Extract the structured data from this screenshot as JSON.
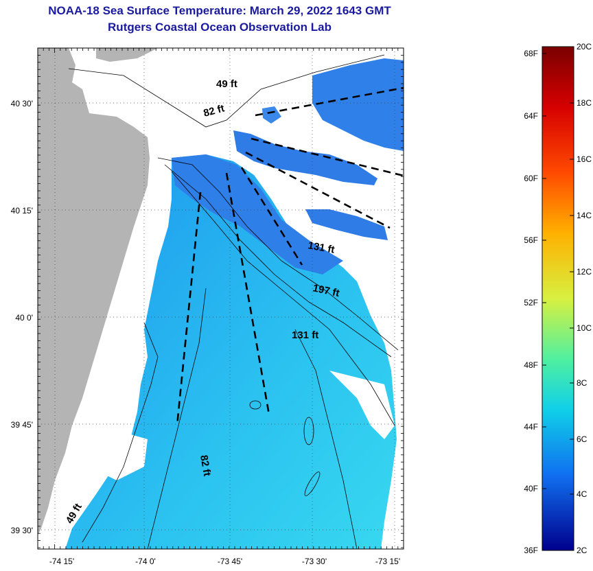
{
  "header": {
    "title": "NOAA-18 Sea Surface Temperature:  March 29, 2022 1643 GMT",
    "subtitle": "Rutgers Coastal Ocean Observation Lab"
  },
  "map": {
    "lat_ticks": [
      "40 30'",
      "40 15'",
      "40 0'",
      "39 45'",
      "39 30'"
    ],
    "lon_ticks": [
      "-74 15'",
      "-74 0'",
      "-73 45'",
      "-73 30'",
      "-73 15'"
    ],
    "depth_labels": [
      "49 ft",
      "82 ft",
      "131 ft",
      "197 ft",
      "131 ft",
      "82 ft",
      "49 ft"
    ],
    "colors": {
      "land": "#b4b4b4",
      "cloud": "#ffffff",
      "water_inshore": "#22a8f0",
      "water_offshore": "#30d0f0",
      "water_cool": "#2f7fe8"
    }
  },
  "colorbar": {
    "fahrenheit": [
      "68F",
      "64F",
      "60F",
      "56F",
      "52F",
      "48F",
      "44F",
      "40F",
      "36F"
    ],
    "celsius": [
      "20C",
      "18C",
      "16C",
      "14C",
      "12C",
      "10C",
      "8C",
      "6C",
      "4C",
      "2C"
    ]
  }
}
